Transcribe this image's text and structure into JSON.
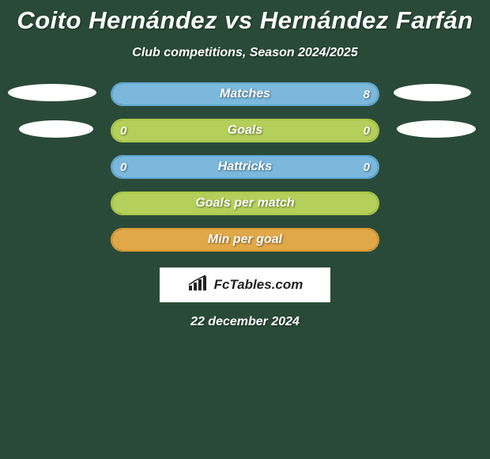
{
  "background_color": "#2a4a39",
  "text_color": "#ffffff",
  "header": {
    "title": "Coito Hernández vs Hernández Farfán",
    "subtitle": "Club competitions, Season 2024/2025",
    "title_fontsize": 31,
    "subtitle_fontsize": 16
  },
  "colors": {
    "blue_border": "#5fa8d3",
    "blue_fill": "#7bb8dc",
    "green_border": "#a8c84a",
    "green_fill": "#b5d05a",
    "orange_border": "#d89830",
    "orange_fill": "#e0a848",
    "ellipse": "#ffffff"
  },
  "bars": [
    {
      "label": "Matches",
      "left": "",
      "right": "8",
      "border": "#5fa8d3",
      "fill": "#7bb8dc",
      "fill_pct": 100
    },
    {
      "label": "Goals",
      "left": "0",
      "right": "0",
      "border": "#a8c84a",
      "fill": "#b5d05a",
      "fill_pct": 100
    },
    {
      "label": "Hattricks",
      "left": "0",
      "right": "0",
      "border": "#5fa8d3",
      "fill": "#7bb8dc",
      "fill_pct": 100
    },
    {
      "label": "Goals per match",
      "left": "",
      "right": "",
      "border": "#a8c84a",
      "fill": "#b5d05a",
      "fill_pct": 100
    },
    {
      "label": "Min per goal",
      "left": "",
      "right": "",
      "border": "#d89830",
      "fill": "#e0a848",
      "fill_pct": 100
    }
  ],
  "brand": {
    "text": "FcTables.com",
    "box_bg": "#ffffff",
    "text_color": "#222222"
  },
  "date": "22 december 2024",
  "left_ellipses": 2,
  "right_ellipses": 2
}
